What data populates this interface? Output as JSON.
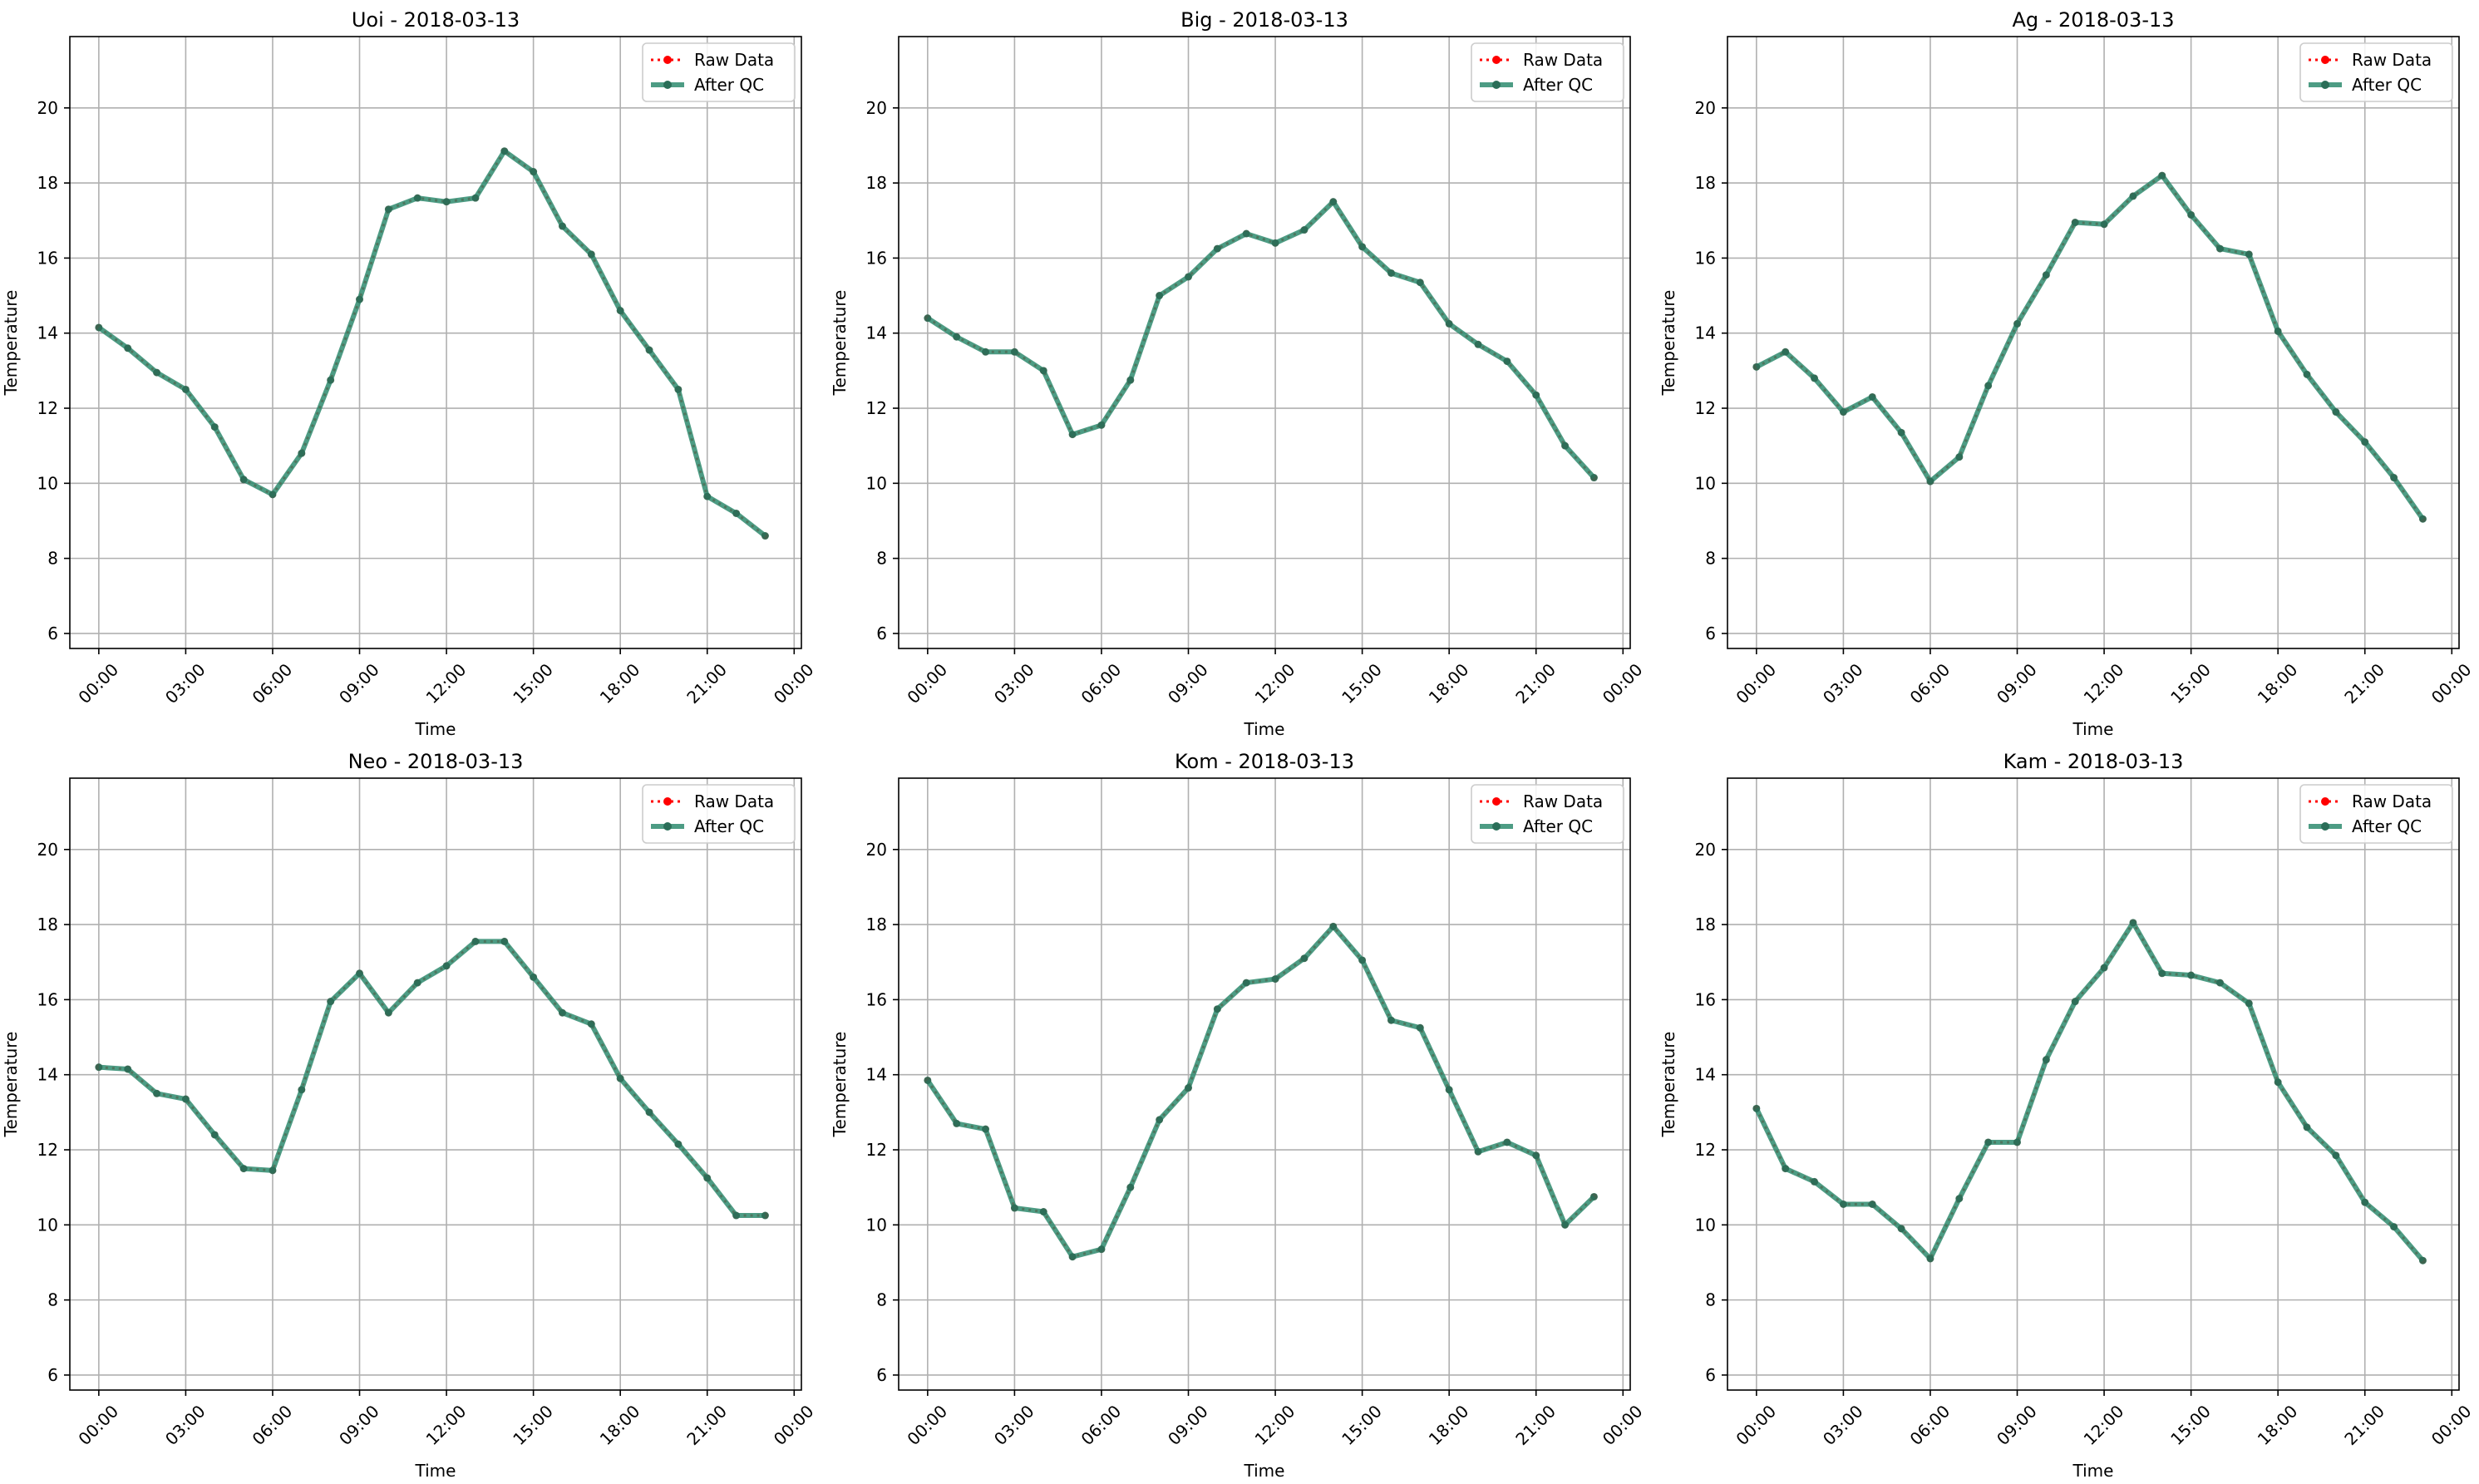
{
  "chart_data": [
    {
      "type": "line",
      "title": "Uoi - 2018-03-13",
      "xlabel": "Time",
      "ylabel": "Temperature",
      "xlim": [
        "2018-03-12T23:00",
        "2018-03-14T00:15"
      ],
      "ylim": [
        5.6,
        21.9
      ],
      "yticks": [
        6,
        8,
        10,
        12,
        14,
        16,
        18,
        20
      ],
      "xtick_labels": [
        "00:00",
        "03:00",
        "06:00",
        "09:00",
        "12:00",
        "15:00",
        "18:00",
        "21:00",
        "00:00"
      ],
      "grid": true,
      "legend_position": "top-right",
      "x": [
        "00:00",
        "01:00",
        "02:00",
        "03:00",
        "04:00",
        "05:00",
        "06:00",
        "07:00",
        "08:00",
        "09:00",
        "10:00",
        "11:00",
        "12:00",
        "13:00",
        "14:00",
        "15:00",
        "16:00",
        "17:00",
        "18:00",
        "19:00",
        "20:00",
        "21:00",
        "22:00",
        "23:00"
      ],
      "series": [
        {
          "name": "Raw Data",
          "color": "#ff0000",
          "values": [
            14.15,
            13.6,
            12.95,
            12.5,
            11.5,
            10.1,
            9.7,
            10.8,
            12.75,
            14.9,
            17.3,
            17.6,
            17.5,
            17.6,
            18.85,
            18.3,
            16.85,
            16.1,
            14.6,
            13.55,
            12.5,
            9.65,
            9.2,
            8.6
          ]
        },
        {
          "name": "After QC",
          "color": "#2e8b6f",
          "values": [
            14.15,
            13.6,
            12.95,
            12.5,
            11.5,
            10.1,
            9.7,
            10.8,
            12.75,
            14.9,
            17.3,
            17.6,
            17.5,
            17.6,
            18.85,
            18.3,
            16.85,
            16.1,
            14.6,
            13.55,
            12.5,
            9.65,
            9.2,
            8.6
          ]
        }
      ]
    },
    {
      "type": "line",
      "title": "Big - 2018-03-13",
      "xlabel": "Time",
      "ylabel": "Temperature",
      "xlim": [
        "2018-03-12T23:00",
        "2018-03-14T00:15"
      ],
      "ylim": [
        5.6,
        21.9
      ],
      "yticks": [
        6,
        8,
        10,
        12,
        14,
        16,
        18,
        20
      ],
      "xtick_labels": [
        "00:00",
        "03:00",
        "06:00",
        "09:00",
        "12:00",
        "15:00",
        "18:00",
        "21:00",
        "00:00"
      ],
      "grid": true,
      "legend_position": "top-right",
      "x": [
        "00:00",
        "01:00",
        "02:00",
        "03:00",
        "04:00",
        "05:00",
        "06:00",
        "07:00",
        "08:00",
        "09:00",
        "10:00",
        "11:00",
        "12:00",
        "13:00",
        "14:00",
        "15:00",
        "16:00",
        "17:00",
        "18:00",
        "19:00",
        "20:00",
        "21:00",
        "22:00",
        "23:00"
      ],
      "series": [
        {
          "name": "Raw Data",
          "color": "#ff0000",
          "values": [
            14.4,
            13.9,
            13.5,
            13.5,
            13.0,
            11.3,
            11.55,
            12.75,
            15.0,
            15.5,
            16.25,
            16.65,
            16.4,
            16.75,
            17.5,
            16.3,
            15.6,
            15.35,
            14.25,
            13.7,
            13.25,
            12.35,
            11.0,
            10.15
          ]
        },
        {
          "name": "After QC",
          "color": "#2e8b6f",
          "values": [
            14.4,
            13.9,
            13.5,
            13.5,
            13.0,
            11.3,
            11.55,
            12.75,
            15.0,
            15.5,
            16.25,
            16.65,
            16.4,
            16.75,
            17.5,
            16.3,
            15.6,
            15.35,
            14.25,
            13.7,
            13.25,
            12.35,
            11.0,
            10.15
          ]
        }
      ]
    },
    {
      "type": "line",
      "title": "Ag - 2018-03-13",
      "xlabel": "Time",
      "ylabel": "Temperature",
      "xlim": [
        "2018-03-12T23:00",
        "2018-03-14T00:15"
      ],
      "ylim": [
        5.6,
        21.9
      ],
      "yticks": [
        6,
        8,
        10,
        12,
        14,
        16,
        18,
        20
      ],
      "xtick_labels": [
        "00:00",
        "03:00",
        "06:00",
        "09:00",
        "12:00",
        "15:00",
        "18:00",
        "21:00",
        "00:00"
      ],
      "grid": true,
      "legend_position": "top-right",
      "x": [
        "00:00",
        "01:00",
        "02:00",
        "03:00",
        "04:00",
        "05:00",
        "06:00",
        "07:00",
        "08:00",
        "09:00",
        "10:00",
        "11:00",
        "12:00",
        "13:00",
        "14:00",
        "15:00",
        "16:00",
        "17:00",
        "18:00",
        "19:00",
        "20:00",
        "21:00",
        "22:00",
        "23:00"
      ],
      "series": [
        {
          "name": "Raw Data",
          "color": "#ff0000",
          "values": [
            13.1,
            13.5,
            12.8,
            11.9,
            12.3,
            11.35,
            10.05,
            10.7,
            12.6,
            14.25,
            15.55,
            16.95,
            16.9,
            17.65,
            18.2,
            17.15,
            16.25,
            16.1,
            14.05,
            12.9,
            11.9,
            11.1,
            10.15,
            9.05
          ]
        },
        {
          "name": "After QC",
          "color": "#2e8b6f",
          "values": [
            13.1,
            13.5,
            12.8,
            11.9,
            12.3,
            11.35,
            10.05,
            10.7,
            12.6,
            14.25,
            15.55,
            16.95,
            16.9,
            17.65,
            18.2,
            17.15,
            16.25,
            16.1,
            14.05,
            12.9,
            11.9,
            11.1,
            10.15,
            9.05
          ]
        }
      ]
    },
    {
      "type": "line",
      "title": "Neo - 2018-03-13",
      "xlabel": "Time",
      "ylabel": "Temperature",
      "xlim": [
        "2018-03-12T23:00",
        "2018-03-14T00:15"
      ],
      "ylim": [
        5.6,
        21.9
      ],
      "yticks": [
        6,
        8,
        10,
        12,
        14,
        16,
        18,
        20
      ],
      "xtick_labels": [
        "00:00",
        "03:00",
        "06:00",
        "09:00",
        "12:00",
        "15:00",
        "18:00",
        "21:00",
        "00:00"
      ],
      "grid": true,
      "legend_position": "top-right",
      "x": [
        "00:00",
        "01:00",
        "02:00",
        "03:00",
        "04:00",
        "05:00",
        "06:00",
        "07:00",
        "08:00",
        "09:00",
        "10:00",
        "11:00",
        "12:00",
        "13:00",
        "14:00",
        "15:00",
        "16:00",
        "17:00",
        "18:00",
        "19:00",
        "20:00",
        "21:00",
        "22:00",
        "23:00"
      ],
      "series": [
        {
          "name": "Raw Data",
          "color": "#ff0000",
          "values": [
            14.2,
            14.15,
            13.5,
            13.35,
            12.4,
            11.5,
            11.45,
            13.6,
            15.95,
            16.7,
            15.65,
            16.45,
            16.9,
            17.55,
            17.55,
            16.6,
            15.65,
            15.35,
            13.9,
            13.0,
            12.15,
            11.25,
            10.25,
            10.25
          ]
        },
        {
          "name": "After QC",
          "color": "#2e8b6f",
          "values": [
            14.2,
            14.15,
            13.5,
            13.35,
            12.4,
            11.5,
            11.45,
            13.6,
            15.95,
            16.7,
            15.65,
            16.45,
            16.9,
            17.55,
            17.55,
            16.6,
            15.65,
            15.35,
            13.9,
            13.0,
            12.15,
            11.25,
            10.25,
            10.25
          ]
        }
      ]
    },
    {
      "type": "line",
      "title": "Kom - 2018-03-13",
      "xlabel": "Time",
      "ylabel": "Temperature",
      "xlim": [
        "2018-03-12T23:00",
        "2018-03-14T00:15"
      ],
      "ylim": [
        5.6,
        21.9
      ],
      "yticks": [
        6,
        8,
        10,
        12,
        14,
        16,
        18,
        20
      ],
      "xtick_labels": [
        "00:00",
        "03:00",
        "06:00",
        "09:00",
        "12:00",
        "15:00",
        "18:00",
        "21:00",
        "00:00"
      ],
      "grid": true,
      "legend_position": "top-right",
      "x": [
        "00:00",
        "01:00",
        "02:00",
        "03:00",
        "04:00",
        "05:00",
        "06:00",
        "07:00",
        "08:00",
        "09:00",
        "10:00",
        "11:00",
        "12:00",
        "13:00",
        "14:00",
        "15:00",
        "16:00",
        "17:00",
        "18:00",
        "19:00",
        "20:00",
        "21:00",
        "22:00",
        "23:00"
      ],
      "series": [
        {
          "name": "Raw Data",
          "color": "#ff0000",
          "values": [
            13.85,
            12.7,
            12.55,
            10.45,
            10.35,
            9.15,
            9.35,
            11.0,
            12.8,
            13.65,
            15.75,
            16.45,
            16.55,
            17.1,
            17.95,
            17.05,
            15.45,
            15.25,
            13.6,
            11.95,
            12.2,
            11.85,
            10.0,
            10.75
          ]
        },
        {
          "name": "After QC",
          "color": "#2e8b6f",
          "values": [
            13.85,
            12.7,
            12.55,
            10.45,
            10.35,
            9.15,
            9.35,
            11.0,
            12.8,
            13.65,
            15.75,
            16.45,
            16.55,
            17.1,
            17.95,
            17.05,
            15.45,
            15.25,
            13.6,
            11.95,
            12.2,
            11.85,
            10.0,
            10.75
          ]
        }
      ]
    },
    {
      "type": "line",
      "title": "Kam - 2018-03-13",
      "xlabel": "Time",
      "ylabel": "Temperature",
      "xlim": [
        "2018-03-12T23:00",
        "2018-03-14T00:15"
      ],
      "ylim": [
        5.6,
        21.9
      ],
      "yticks": [
        6,
        8,
        10,
        12,
        14,
        16,
        18,
        20
      ],
      "xtick_labels": [
        "00:00",
        "03:00",
        "06:00",
        "09:00",
        "12:00",
        "15:00",
        "18:00",
        "21:00",
        "00:00"
      ],
      "grid": true,
      "legend_position": "top-right",
      "x": [
        "00:00",
        "01:00",
        "02:00",
        "03:00",
        "04:00",
        "05:00",
        "06:00",
        "07:00",
        "08:00",
        "09:00",
        "10:00",
        "11:00",
        "12:00",
        "13:00",
        "14:00",
        "15:00",
        "16:00",
        "17:00",
        "18:00",
        "19:00",
        "20:00",
        "21:00",
        "22:00",
        "23:00"
      ],
      "series": [
        {
          "name": "Raw Data",
          "color": "#ff0000",
          "values": [
            13.1,
            11.5,
            11.15,
            10.55,
            10.55,
            9.9,
            9.1,
            10.7,
            12.2,
            12.2,
            14.4,
            15.95,
            16.85,
            18.05,
            16.7,
            16.65,
            16.45,
            15.9,
            13.8,
            12.6,
            11.85,
            10.6,
            9.95,
            9.05
          ]
        },
        {
          "name": "After QC",
          "color": "#2e8b6f",
          "values": [
            13.1,
            11.5,
            11.15,
            10.55,
            10.55,
            9.9,
            9.1,
            10.7,
            12.2,
            12.2,
            14.4,
            15.95,
            16.85,
            18.05,
            16.7,
            16.65,
            16.45,
            15.9,
            13.8,
            12.6,
            11.85,
            10.6,
            9.95,
            9.05
          ]
        }
      ]
    }
  ]
}
